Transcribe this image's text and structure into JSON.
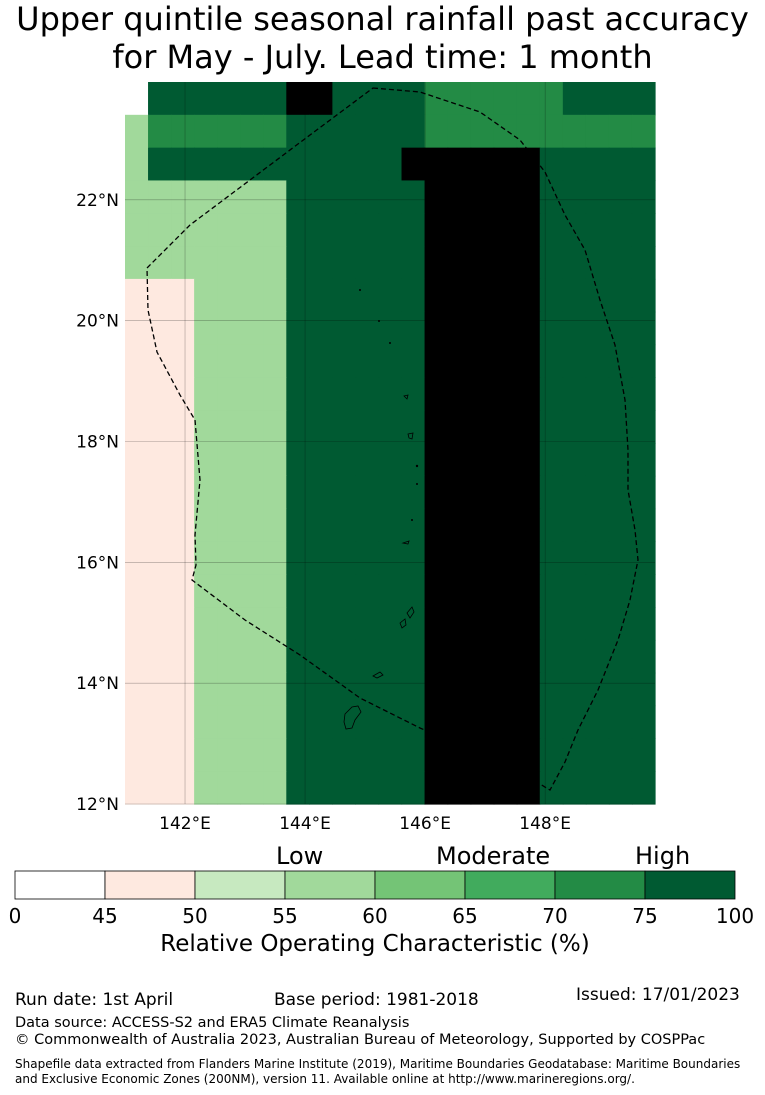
{
  "title": {
    "line1": "Upper quintile seasonal rainfall past accuracy",
    "line2": "for May - July. Lead time: 1 month"
  },
  "map": {
    "lon_ticks": [
      "142°E",
      "144°E",
      "146°E",
      "148°E"
    ],
    "lat_ticks": [
      "12°N",
      "14°N",
      "16°N",
      "18°N",
      "20°N",
      "22°N"
    ],
    "lon_range": [
      141.0,
      149.83
    ],
    "lat_range": [
      12.0,
      23.95
    ],
    "grid": [
      [
        0,
        7,
        7,
        7,
        7,
        7,
        7,
        8,
        8,
        7,
        7,
        7,
        7,
        6,
        6,
        6,
        6,
        6,
        6,
        7,
        7,
        7,
        7
      ],
      [
        3,
        6,
        6,
        6,
        6,
        6,
        6,
        7,
        7,
        7,
        7,
        7,
        7,
        6,
        6,
        6,
        6,
        6,
        6,
        6,
        6,
        6,
        6
      ],
      [
        3,
        7,
        7,
        7,
        7,
        7,
        7,
        7,
        7,
        7,
        7,
        7,
        8,
        8,
        8,
        8,
        8,
        8,
        7,
        7,
        7,
        7,
        7
      ],
      [
        3,
        3,
        3,
        3,
        3,
        3,
        3,
        7,
        7,
        7,
        7,
        7,
        7,
        8,
        8,
        8,
        8,
        8,
        7,
        7,
        7,
        7,
        7
      ],
      [
        3,
        3,
        3,
        3,
        3,
        3,
        3,
        7,
        7,
        7,
        7,
        7,
        7,
        8,
        8,
        8,
        8,
        8,
        7,
        7,
        7,
        7,
        7
      ],
      [
        3,
        3,
        3,
        3,
        3,
        3,
        3,
        7,
        7,
        7,
        7,
        7,
        7,
        8,
        8,
        8,
        8,
        8,
        7,
        7,
        7,
        7,
        7
      ],
      [
        1,
        1,
        1,
        3,
        3,
        3,
        3,
        7,
        7,
        7,
        7,
        7,
        7,
        8,
        8,
        8,
        8,
        8,
        7,
        7,
        7,
        7,
        7
      ],
      [
        1,
        1,
        1,
        3,
        3,
        3,
        3,
        7,
        7,
        7,
        7,
        7,
        7,
        8,
        8,
        8,
        8,
        8,
        7,
        7,
        7,
        7,
        7
      ],
      [
        1,
        1,
        1,
        3,
        3,
        3,
        3,
        7,
        7,
        7,
        7,
        7,
        7,
        8,
        8,
        8,
        8,
        8,
        7,
        7,
        7,
        7,
        7
      ],
      [
        1,
        1,
        1,
        3,
        3,
        3,
        3,
        7,
        7,
        7,
        7,
        7,
        7,
        8,
        8,
        8,
        8,
        8,
        7,
        7,
        7,
        7,
        7
      ],
      [
        1,
        1,
        1,
        3,
        3,
        3,
        3,
        7,
        7,
        7,
        7,
        7,
        7,
        8,
        8,
        8,
        8,
        8,
        7,
        7,
        7,
        7,
        7
      ],
      [
        1,
        1,
        1,
        3,
        3,
        3,
        3,
        7,
        7,
        7,
        7,
        7,
        7,
        8,
        8,
        8,
        8,
        8,
        7,
        7,
        7,
        7,
        7
      ],
      [
        1,
        1,
        1,
        3,
        3,
        3,
        3,
        7,
        7,
        7,
        7,
        7,
        7,
        8,
        8,
        8,
        8,
        8,
        7,
        7,
        7,
        7,
        7
      ],
      [
        1,
        1,
        1,
        3,
        3,
        3,
        3,
        7,
        7,
        7,
        7,
        7,
        7,
        8,
        8,
        8,
        8,
        8,
        7,
        7,
        7,
        7,
        7
      ],
      [
        1,
        1,
        1,
        3,
        3,
        3,
        3,
        7,
        7,
        7,
        7,
        7,
        7,
        8,
        8,
        8,
        8,
        8,
        7,
        7,
        7,
        7,
        7
      ],
      [
        1,
        1,
        1,
        3,
        3,
        3,
        3,
        7,
        7,
        7,
        7,
        7,
        7,
        8,
        8,
        8,
        8,
        8,
        7,
        7,
        7,
        7,
        7
      ],
      [
        1,
        1,
        1,
        3,
        3,
        3,
        3,
        7,
        7,
        7,
        7,
        7,
        7,
        8,
        8,
        8,
        8,
        8,
        7,
        7,
        7,
        7,
        7
      ],
      [
        1,
        1,
        1,
        3,
        3,
        3,
        3,
        7,
        7,
        7,
        7,
        7,
        7,
        8,
        8,
        8,
        8,
        8,
        7,
        7,
        7,
        7,
        7
      ],
      [
        1,
        1,
        1,
        3,
        3,
        3,
        3,
        7,
        7,
        7,
        7,
        7,
        7,
        8,
        8,
        8,
        8,
        8,
        7,
        7,
        7,
        7,
        7
      ],
      [
        1,
        1,
        1,
        3,
        3,
        3,
        3,
        7,
        7,
        7,
        7,
        7,
        7,
        8,
        8,
        8,
        8,
        8,
        7,
        7,
        7,
        7,
        7
      ],
      [
        1,
        1,
        1,
        3,
        3,
        3,
        3,
        7,
        7,
        7,
        7,
        7,
        7,
        8,
        8,
        8,
        8,
        8,
        7,
        7,
        7,
        7,
        7
      ],
      [
        1,
        1,
        1,
        3,
        3,
        3,
        3,
        7,
        7,
        7,
        7,
        7,
        7,
        8,
        8,
        8,
        8,
        8,
        7,
        7,
        7,
        7,
        7
      ]
    ]
  },
  "colorbar": {
    "tick_labels": [
      "0",
      "45",
      "50",
      "55",
      "60",
      "65",
      "70",
      "75",
      "100"
    ],
    "colors": [
      "#ffffff",
      "#fee9e0",
      "#c7e9c0",
      "#a1d99b",
      "#74c476",
      "#41ab5d",
      "#238b45",
      "#005a32"
    ],
    "categories": {
      "low": "Low",
      "moderate": "Moderate",
      "high": "High"
    },
    "title": "Relative Operating Characteristic (%)"
  },
  "footer": {
    "run_date": "Run date: 1st April",
    "base_period": "Base period: 1981-2018",
    "issued": "Issued: 17/01/2023",
    "data_source": "Data source: ACCESS-S2 and ERA5 Climate Reanalysis",
    "copyright": "© Commonwealth of Australia 2023, Australian Bureau of Meteorology, Supported by COSPPac",
    "shapefile_line1": "Shapefile data extracted from Flanders Marine Institute (2019), Maritime Boundaries Geodatabase: Maritime Boundaries",
    "shapefile_line2": "and Exclusive Economic Zones (200NM), version 11. Available online at http://www.marineregions.org/."
  }
}
